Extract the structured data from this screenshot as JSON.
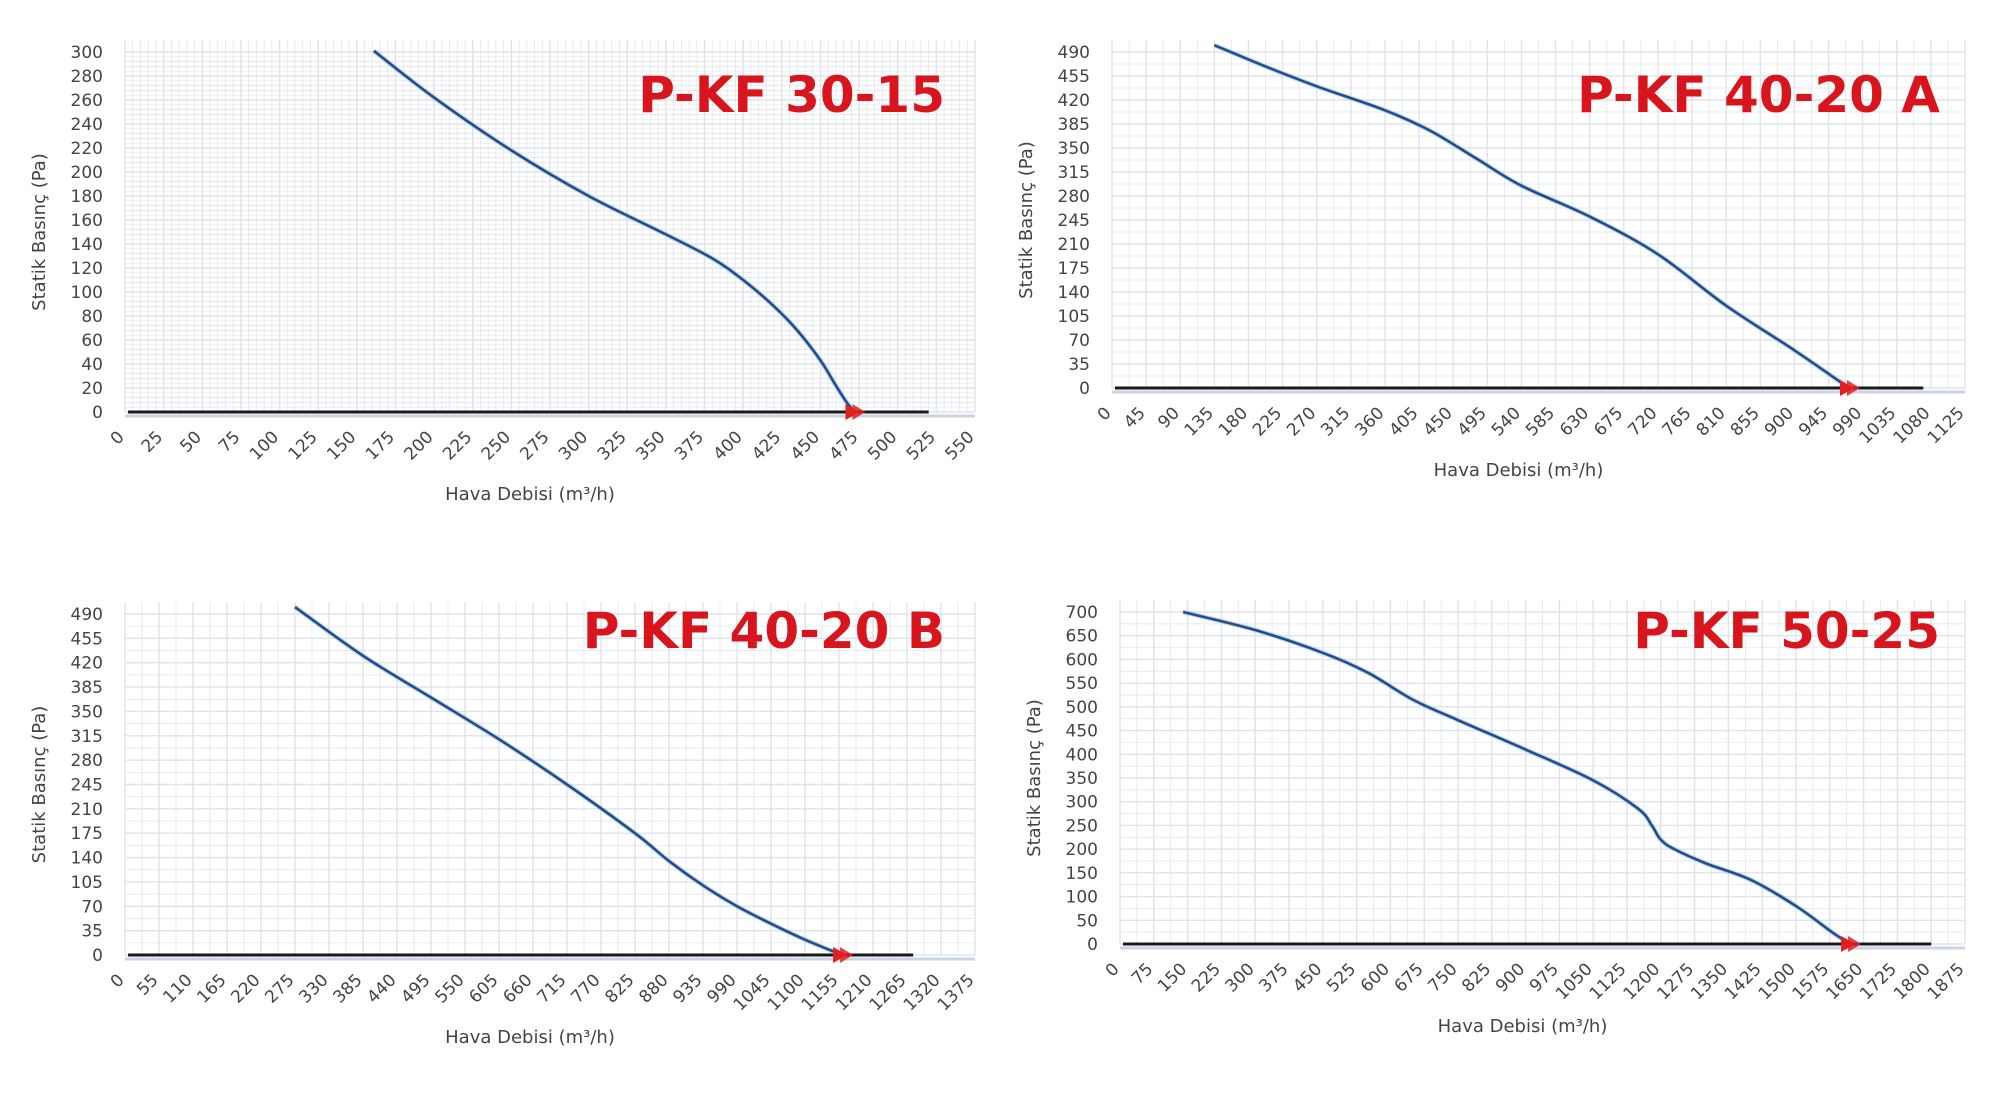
{
  "colors": {
    "curve": "#1f4e8c",
    "baseline": "#1a1a1a",
    "grid": "#dfe3ea",
    "marker": "#e02020",
    "title": "#d8141c",
    "panel_bg": "#ffffff"
  },
  "chart_data": [
    {
      "type": "line",
      "title": "P-KF 30-15",
      "xlabel": "Hava Debisi (m³/h)",
      "ylabel": "Statik Basınç (Pa)",
      "xlim": [
        0,
        550
      ],
      "ylim": [
        0,
        300
      ],
      "x_ticks": [
        "0",
        "25",
        "50",
        "75",
        "100",
        "125",
        "150",
        "175",
        "200",
        "225",
        "250",
        "275",
        "300",
        "325",
        "350",
        "375",
        "400",
        "425",
        "450",
        "475",
        "500",
        "525",
        "550"
      ],
      "y_ticks": [
        "0",
        "20",
        "40",
        "60",
        "80",
        "100",
        "120",
        "140",
        "160",
        "180",
        "200",
        "220",
        "240",
        "260",
        "280",
        "300"
      ],
      "grid": "fine",
      "baseline_end": 520,
      "operating_point": [
        472,
        0
      ],
      "series": [
        {
          "x": [
            161,
            200,
            250,
            300,
            350,
            380,
            400,
            420,
            435,
            450,
            460,
            467,
            472
          ],
          "y": [
            301,
            262,
            218,
            180,
            148,
            128,
            110,
            88,
            68,
            43,
            22,
            8,
            0
          ]
        }
      ]
    },
    {
      "type": "line",
      "title": "P-KF 40-20 A",
      "xlabel": "Hava Debisi (m³/h)",
      "ylabel": "Statik Basınç (Pa)",
      "xlim": [
        0,
        1125
      ],
      "ylim": [
        0,
        490
      ],
      "x_ticks": [
        "0",
        "45",
        "90",
        "135",
        "180",
        "225",
        "270",
        "315",
        "360",
        "405",
        "450",
        "495",
        "540",
        "585",
        "630",
        "675",
        "720",
        "765",
        "810",
        "855",
        "900",
        "945",
        "990",
        "1035",
        "1080",
        "1125"
      ],
      "y_ticks": [
        "0",
        "35",
        "70",
        "105",
        "140",
        "175",
        "210",
        "245",
        "280",
        "315",
        "350",
        "385",
        "420",
        "455",
        "490"
      ],
      "grid": "coarse",
      "baseline_end": 1070,
      "operating_point": [
        972,
        0
      ],
      "series": [
        {
          "x": [
            135,
            200,
            270,
            360,
            420,
            480,
            540,
            630,
            720,
            810,
            900,
            972
          ],
          "y": [
            500,
            470,
            440,
            405,
            375,
            335,
            295,
            250,
            195,
            120,
            55,
            0
          ]
        }
      ]
    },
    {
      "type": "line",
      "title": "P-KF 40-20 B",
      "xlabel": "Hava Debisi (m³/h)",
      "ylabel": "Statik Basınç (Pa)",
      "xlim": [
        0,
        1375
      ],
      "ylim": [
        0,
        490
      ],
      "x_ticks": [
        "0",
        "55",
        "110",
        "165",
        "220",
        "275",
        "330",
        "385",
        "440",
        "495",
        "550",
        "605",
        "660",
        "715",
        "770",
        "825",
        "880",
        "935",
        "990",
        "1045",
        "1100",
        "1155",
        "1210",
        "1265",
        "1320",
        "1375"
      ],
      "y_ticks": [
        "0",
        "35",
        "70",
        "105",
        "140",
        "175",
        "210",
        "245",
        "280",
        "315",
        "350",
        "385",
        "420",
        "455",
        "490"
      ],
      "grid": "coarse",
      "baseline_end": 1275,
      "operating_point": [
        1160,
        0
      ],
      "series": [
        {
          "x": [
            275,
            385,
            495,
            605,
            715,
            825,
            880,
            935,
            990,
            1045,
            1100,
            1160
          ],
          "y": [
            500,
            430,
            370,
            310,
            245,
            175,
            135,
            100,
            70,
            45,
            22,
            0
          ]
        }
      ]
    },
    {
      "type": "line",
      "title": "P-KF 50-25",
      "xlabel": "Hava Debisi (m³/h)",
      "ylabel": "Statik Basınç (Pa)",
      "xlim": [
        0,
        1875
      ],
      "ylim": [
        0,
        700
      ],
      "x_ticks": [
        "0",
        "75",
        "150",
        "225",
        "300",
        "375",
        "450",
        "525",
        "600",
        "675",
        "750",
        "825",
        "900",
        "975",
        "1050",
        "1125",
        "1200",
        "1275",
        "1350",
        "1425",
        "1500",
        "1575",
        "1650",
        "1725",
        "1800",
        "1875"
      ],
      "y_ticks": [
        "0",
        "50",
        "100",
        "150",
        "200",
        "250",
        "300",
        "350",
        "400",
        "450",
        "500",
        "550",
        "600",
        "650",
        "700"
      ],
      "grid": "coarse",
      "baseline_end": 1800,
      "operating_point": [
        1620,
        0
      ],
      "series": [
        {
          "x": [
            140,
            300,
            450,
            550,
            650,
            750,
            900,
            1050,
            1150,
            1180,
            1200,
            1230,
            1300,
            1400,
            1500,
            1580,
            1620
          ],
          "y": [
            700,
            662,
            614,
            572,
            515,
            472,
            410,
            345,
            285,
            250,
            220,
            200,
            170,
            135,
            80,
            25,
            0
          ]
        }
      ]
    }
  ]
}
